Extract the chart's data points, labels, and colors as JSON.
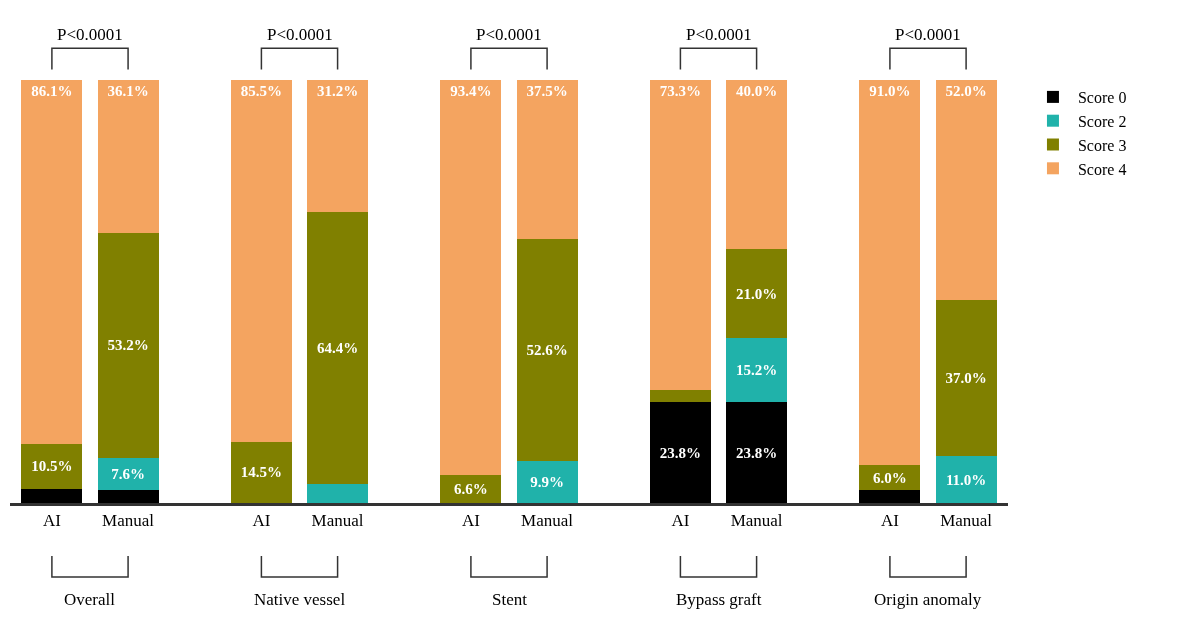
{
  "chart_data": {
    "type": "bar",
    "stacked": true,
    "categories": [
      "AI",
      "Manual",
      "AI",
      "Manual",
      "AI",
      "Manual",
      "AI",
      "Manual",
      "AI",
      "Manual"
    ],
    "ylim": [
      0,
      100
    ],
    "tick_labels": "x",
    "legend": "top right",
    "series": [
      {
        "name": "Score 0",
        "color": "#000000",
        "values": [
          3.4,
          3.1,
          0,
          0,
          0,
          0,
          23.8,
          23.8,
          3.0,
          0
        ],
        "value_labels": [
          null,
          null,
          null,
          null,
          null,
          null,
          "23.8%",
          "23.8%",
          null,
          null
        ]
      },
      {
        "name": "Score 2",
        "color": "#20b2aa",
        "values": [
          0,
          7.6,
          0,
          4.4,
          0,
          9.9,
          0,
          15.2,
          0,
          11.0
        ],
        "value_labels": [
          null,
          "7.6%",
          null,
          null,
          null,
          "9.9%",
          null,
          "15.2%",
          null,
          "11.0%"
        ]
      },
      {
        "name": "Score 3",
        "color": "#808000",
        "values": [
          10.5,
          53.2,
          14.5,
          64.4,
          6.6,
          52.6,
          2.9,
          21.0,
          6.0,
          37.0
        ],
        "value_labels": [
          "10.5%",
          "53.2%",
          "14.5%",
          "64.4%",
          "6.6%",
          "52.6%",
          null,
          "21.0%",
          "6.0%",
          "37.0%"
        ]
      },
      {
        "name": "Score 4",
        "color": "#f4a460",
        "values": [
          86.1,
          36.1,
          85.5,
          31.2,
          93.4,
          37.5,
          73.3,
          40.0,
          91.0,
          52.0
        ],
        "value_labels": [
          "86.1%",
          "36.1%",
          "85.5%",
          "31.2%",
          "93.4%",
          "37.5%",
          "73.3%",
          "40.0%",
          "91.0%",
          "52.0%"
        ]
      }
    ],
    "annotations": [
      "P<0.0001",
      "P<0.0001",
      "P<0.0001",
      "P<0.0001",
      "P<0.0001",
      "Overall",
      "Native vessel",
      "Stent",
      "Bypass graft",
      "Origin anomaly"
    ]
  }
}
